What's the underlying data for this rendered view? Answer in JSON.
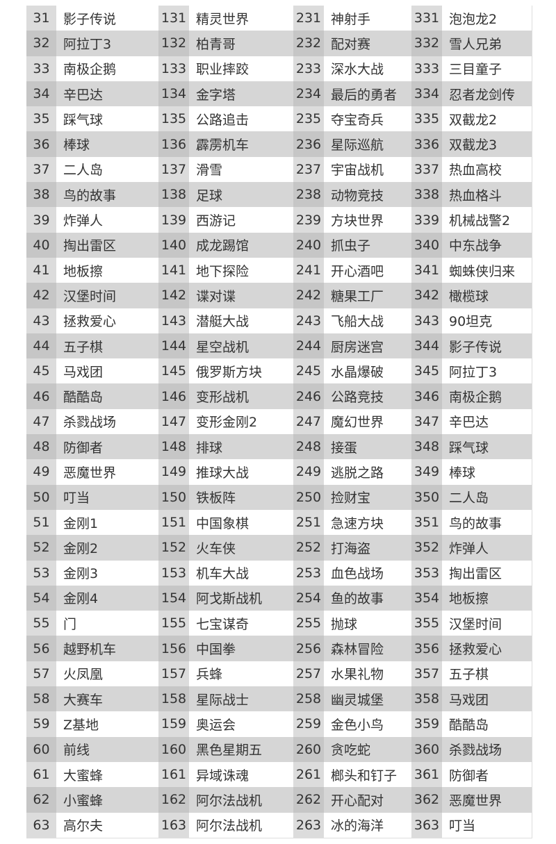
{
  "columns": 4,
  "rows": [
    [
      [
        "31",
        "影子传说"
      ],
      [
        "131",
        "精灵世界"
      ],
      [
        "231",
        "神射手"
      ],
      [
        "331",
        "泡泡龙2"
      ]
    ],
    [
      [
        "32",
        "阿拉丁3"
      ],
      [
        "132",
        "柏青哥"
      ],
      [
        "232",
        "配对赛"
      ],
      [
        "332",
        "雪人兄弟"
      ]
    ],
    [
      [
        "33",
        "南极企鹅"
      ],
      [
        "133",
        "职业摔跤"
      ],
      [
        "233",
        "深水大战"
      ],
      [
        "333",
        "三目童子"
      ]
    ],
    [
      [
        "34",
        "辛巴达"
      ],
      [
        "134",
        "金字塔"
      ],
      [
        "234",
        "最后的勇者"
      ],
      [
        "334",
        "忍者龙剑传"
      ]
    ],
    [
      [
        "35",
        "踩气球"
      ],
      [
        "135",
        "公路追击"
      ],
      [
        "235",
        "夺宝奇兵"
      ],
      [
        "335",
        "双截龙2"
      ]
    ],
    [
      [
        "36",
        "棒球"
      ],
      [
        "136",
        "霹雳机车"
      ],
      [
        "236",
        "星际巡航"
      ],
      [
        "336",
        "双截龙3"
      ]
    ],
    [
      [
        "37",
        "二人岛"
      ],
      [
        "137",
        "滑雪"
      ],
      [
        "237",
        "宇宙战机"
      ],
      [
        "337",
        "热血高校"
      ]
    ],
    [
      [
        "38",
        "鸟的故事"
      ],
      [
        "138",
        "足球"
      ],
      [
        "238",
        "动物竞技"
      ],
      [
        "338",
        "热血格斗"
      ]
    ],
    [
      [
        "39",
        "炸弹人"
      ],
      [
        "139",
        "西游记"
      ],
      [
        "239",
        "方块世界"
      ],
      [
        "339",
        "机械战警2"
      ]
    ],
    [
      [
        "40",
        "掏出雷区"
      ],
      [
        "140",
        "成龙踢馆"
      ],
      [
        "240",
        "抓虫子"
      ],
      [
        "340",
        "中东战争"
      ]
    ],
    [
      [
        "41",
        "地板擦"
      ],
      [
        "141",
        "地下探险"
      ],
      [
        "241",
        "开心酒吧"
      ],
      [
        "341",
        "蜘蛛侠归来"
      ]
    ],
    [
      [
        "42",
        "汉堡时间"
      ],
      [
        "142",
        "谍对谍"
      ],
      [
        "242",
        "糖果工厂"
      ],
      [
        "342",
        "橄榄球"
      ]
    ],
    [
      [
        "43",
        "拯救爱心"
      ],
      [
        "143",
        "潜艇大战"
      ],
      [
        "243",
        "飞船大战"
      ],
      [
        "343",
        "90坦克"
      ]
    ],
    [
      [
        "44",
        "五子棋"
      ],
      [
        "144",
        "星空战机"
      ],
      [
        "244",
        "厨房迷宫"
      ],
      [
        "344",
        "影子传说"
      ]
    ],
    [
      [
        "45",
        "马戏团"
      ],
      [
        "145",
        "俄罗斯方块"
      ],
      [
        "245",
        "水晶爆破"
      ],
      [
        "345",
        "阿拉丁3"
      ]
    ],
    [
      [
        "46",
        "酷酷岛"
      ],
      [
        "146",
        "变形战机"
      ],
      [
        "246",
        "公路竞技"
      ],
      [
        "346",
        "南极企鹅"
      ]
    ],
    [
      [
        "47",
        "杀戮战场"
      ],
      [
        "147",
        "变形金刚2"
      ],
      [
        "247",
        "魔幻世界"
      ],
      [
        "347",
        "辛巴达"
      ]
    ],
    [
      [
        "48",
        "防御者"
      ],
      [
        "148",
        "排球"
      ],
      [
        "248",
        "接蛋"
      ],
      [
        "348",
        "踩气球"
      ]
    ],
    [
      [
        "49",
        "恶魔世界"
      ],
      [
        "149",
        "推球大战"
      ],
      [
        "249",
        "逃脱之路"
      ],
      [
        "349",
        "棒球"
      ]
    ],
    [
      [
        "50",
        "叮当"
      ],
      [
        "150",
        "铁板阵"
      ],
      [
        "250",
        "捡财宝"
      ],
      [
        "350",
        "二人岛"
      ]
    ],
    [
      [
        "51",
        "金刚1"
      ],
      [
        "151",
        "中国象棋"
      ],
      [
        "251",
        "急速方块"
      ],
      [
        "351",
        "鸟的故事"
      ]
    ],
    [
      [
        "52",
        "金刚2"
      ],
      [
        "152",
        "火车侠"
      ],
      [
        "252",
        "打海盗"
      ],
      [
        "352",
        "炸弹人"
      ]
    ],
    [
      [
        "53",
        "金刚3"
      ],
      [
        "153",
        "机车大战"
      ],
      [
        "253",
        "血色战场"
      ],
      [
        "353",
        "掏出雷区"
      ]
    ],
    [
      [
        "54",
        "金刚4"
      ],
      [
        "154",
        "阿戈斯战机"
      ],
      [
        "254",
        "鱼的故事"
      ],
      [
        "354",
        "地板擦"
      ]
    ],
    [
      [
        "55",
        "门"
      ],
      [
        "155",
        "七宝谋奇"
      ],
      [
        "255",
        "抛球"
      ],
      [
        "355",
        "汉堡时间"
      ]
    ],
    [
      [
        "56",
        "越野机车"
      ],
      [
        "156",
        "中国拳"
      ],
      [
        "256",
        "森林冒险"
      ],
      [
        "356",
        "拯救爱心"
      ]
    ],
    [
      [
        "57",
        "火凤凰"
      ],
      [
        "157",
        "兵蜂"
      ],
      [
        "257",
        "水果礼物"
      ],
      [
        "357",
        "五子棋"
      ]
    ],
    [
      [
        "58",
        "大赛车"
      ],
      [
        "158",
        "星际战士"
      ],
      [
        "258",
        "幽灵城堡"
      ],
      [
        "358",
        "马戏团"
      ]
    ],
    [
      [
        "59",
        "Z基地"
      ],
      [
        "159",
        "奥运会"
      ],
      [
        "259",
        "金色小鸟"
      ],
      [
        "359",
        "酷酷岛"
      ]
    ],
    [
      [
        "60",
        "前线"
      ],
      [
        "160",
        "黑色星期五"
      ],
      [
        "260",
        "贪吃蛇"
      ],
      [
        "360",
        "杀戮战场"
      ]
    ],
    [
      [
        "61",
        "大蜜蜂"
      ],
      [
        "161",
        "异域诛魂"
      ],
      [
        "261",
        "榔头和钉子"
      ],
      [
        "361",
        "防御者"
      ]
    ],
    [
      [
        "62",
        "小蜜蜂"
      ],
      [
        "162",
        "阿尔法战机"
      ],
      [
        "262",
        "开心配对"
      ],
      [
        "362",
        "恶魔世界"
      ]
    ],
    [
      [
        "63",
        "高尔夫"
      ],
      [
        "163",
        "阿尔法战机"
      ],
      [
        "263",
        "冰的海洋"
      ],
      [
        "363",
        "叮当"
      ]
    ]
  ]
}
